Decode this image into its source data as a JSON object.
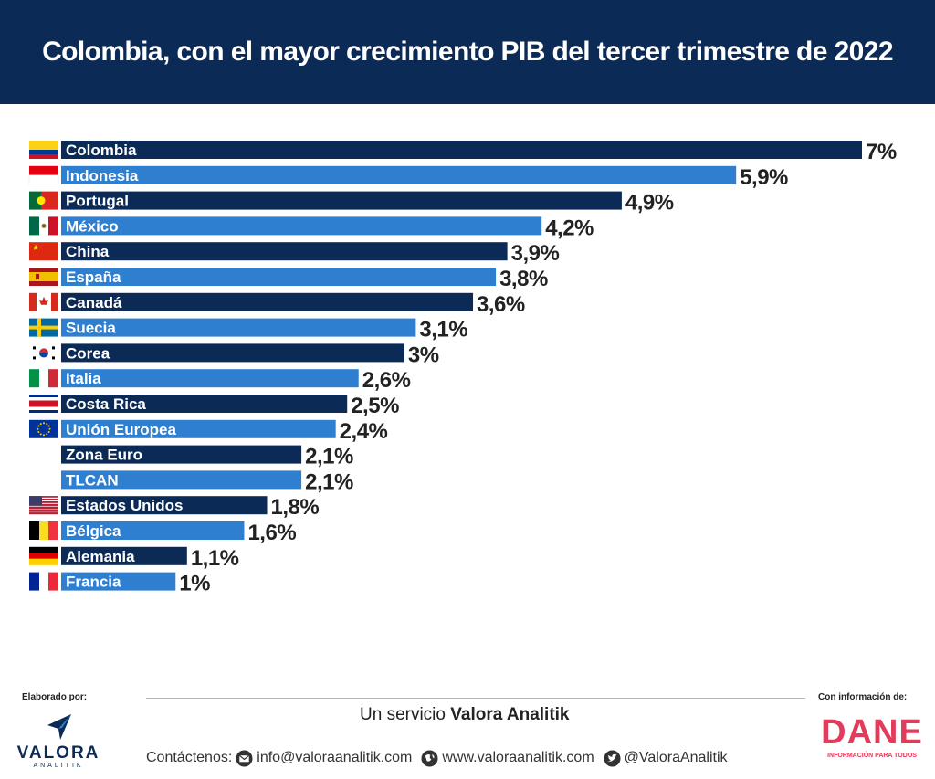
{
  "header": {
    "title": "Colombia, con el mayor crecimiento PIB del tercer trimestre de 2022"
  },
  "chart_data": {
    "type": "bar",
    "orientation": "horizontal",
    "title": "Colombia, con el mayor crecimiento PIB del tercer trimestre de 2022",
    "xlabel": "",
    "ylabel": "",
    "xlim": [
      0,
      7
    ],
    "grid": false,
    "categories": [
      "Colombia",
      "Indonesia",
      "Portugal",
      "México",
      "China",
      "España",
      "Canadá",
      "Suecia",
      "Corea",
      "Italia",
      "Costa Rica",
      "Unión Europea",
      "Zona Euro",
      "TLCAN",
      "Estados Unidos",
      "Bélgica",
      "Alemania",
      "Francia"
    ],
    "values": [
      7,
      5.9,
      4.9,
      4.2,
      3.9,
      3.8,
      3.6,
      3.1,
      3,
      2.6,
      2.5,
      2.4,
      2.1,
      2.1,
      1.8,
      1.6,
      1.1,
      1
    ],
    "value_labels": [
      "7%",
      "5,9%",
      "4,9%",
      "4,2%",
      "3,9%",
      "3,8%",
      "3,6%",
      "3,1%",
      "3%",
      "2,6%",
      "2,5%",
      "2,4%",
      "2,1%",
      "2,1%",
      "1,8%",
      "1,6%",
      "1,1%",
      "1%"
    ],
    "flags": [
      "co",
      "id",
      "pt",
      "mx",
      "cn",
      "es",
      "ca",
      "se",
      "kr",
      "it",
      "cr",
      "eu",
      "",
      "",
      "us",
      "be",
      "de",
      "fr"
    ],
    "bar_colors": [
      "#0b2a55",
      "#2f7fd0"
    ]
  },
  "footer": {
    "made_by_label": "Elaborado por:",
    "info_label": "Con información de:",
    "service_prefix": "Un servicio ",
    "service_name": "Valora Analitik",
    "contact_label": "Contáctenos:",
    "email": "info@valoraanalitik.com",
    "website": "www.valoraanalitik.com",
    "twitter": "@ValoraAnalitik",
    "valora_name": "VALORA",
    "valora_sub": "ANALITIK",
    "dane_name": "DANE",
    "dane_sub": "INFORMACIÓN PARA TODOS"
  },
  "icons": {
    "email": "envelope-icon",
    "website": "globe-icon",
    "twitter": "twitter-bird-icon"
  }
}
